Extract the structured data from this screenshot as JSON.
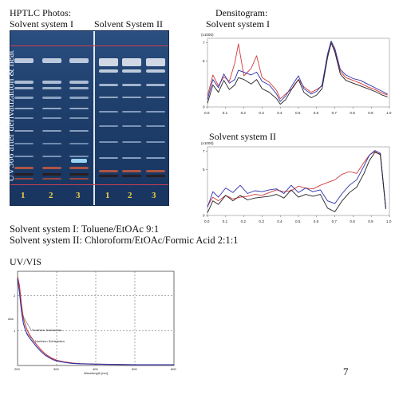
{
  "headings": {
    "hptlc": "HPTLC Photos:",
    "densitogram": "Densitogram:",
    "solvent1": "Solvent system I",
    "solvent2": "Solvent System II",
    "densito_solvent1": "Solvent system I",
    "densito_solvent2": "Solvent system II",
    "vertical_label": "UV366 after derivatization & heat"
  },
  "lanes": [
    "1",
    "2",
    "3",
    "1",
    "2",
    "3"
  ],
  "legend_text": {
    "line1": "Solvent system I: Toluene/EtOAc  9:1",
    "line2": "Solvent system II: Chloroform/EtOAc/Formic Acid  2:1:1"
  },
  "uv_title": "UV/VIS",
  "page_number": "7",
  "colors": {
    "plate_bg": "#1e3e6a",
    "densito_blue": "#2b2fa8",
    "densito_red": "#d23a3a",
    "densito_black": "#222222",
    "lane_label": "#f0d040"
  },
  "chart_data": [
    {
      "type": "line",
      "title": "Solvent system I",
      "ylabel": "(x1000)",
      "yticks": [
        "7",
        "5",
        "0"
      ],
      "xticks": [
        "0.0",
        "0.1",
        "0.2",
        "0.3",
        "0.4",
        "0.5",
        "0.6",
        "0.7",
        "0.8",
        "0.9",
        "1.0"
      ],
      "xlim": [
        0,
        1
      ],
      "ylim": [
        0,
        7.5
      ],
      "series": [
        {
          "color": "#d23a3a",
          "x": [
            0,
            0.03,
            0.06,
            0.09,
            0.12,
            0.15,
            0.17,
            0.2,
            0.24,
            0.27,
            0.3,
            0.34,
            0.38,
            0.4,
            0.43,
            0.47,
            0.5,
            0.53,
            0.57,
            0.6,
            0.63,
            0.66,
            0.68,
            0.7,
            0.73,
            0.76,
            0.8,
            0.84,
            0.88,
            0.92,
            0.96,
            0.99
          ],
          "y": [
            1.2,
            3.5,
            2.3,
            3.3,
            2.8,
            4.8,
            6.9,
            3.4,
            4.2,
            5.6,
            3.2,
            2.7,
            1.8,
            0.9,
            1.4,
            2.1,
            3.0,
            2.2,
            1.6,
            1.9,
            2.3,
            5.5,
            7.0,
            6.2,
            3.9,
            3.2,
            2.9,
            2.6,
            2.2,
            1.9,
            1.5,
            1.3
          ]
        },
        {
          "color": "#2b2fa8",
          "x": [
            0,
            0.03,
            0.06,
            0.09,
            0.12,
            0.15,
            0.17,
            0.2,
            0.24,
            0.27,
            0.3,
            0.34,
            0.38,
            0.4,
            0.43,
            0.47,
            0.5,
            0.53,
            0.57,
            0.6,
            0.63,
            0.66,
            0.68,
            0.7,
            0.73,
            0.76,
            0.8,
            0.84,
            0.88,
            0.92,
            0.96,
            0.99
          ],
          "y": [
            0.8,
            3.0,
            2.1,
            3.6,
            2.6,
            3.0,
            4.0,
            3.8,
            3.5,
            3.8,
            2.8,
            2.4,
            1.4,
            0.6,
            1.2,
            2.5,
            3.4,
            2.0,
            1.4,
            1.7,
            2.4,
            5.8,
            7.2,
            6.4,
            4.1,
            3.5,
            3.1,
            2.9,
            2.5,
            2.1,
            1.7,
            1.4
          ]
        },
        {
          "color": "#222222",
          "x": [
            0,
            0.03,
            0.06,
            0.09,
            0.12,
            0.15,
            0.17,
            0.2,
            0.24,
            0.27,
            0.3,
            0.34,
            0.38,
            0.4,
            0.43,
            0.47,
            0.5,
            0.53,
            0.57,
            0.6,
            0.63,
            0.66,
            0.68,
            0.7,
            0.73,
            0.76,
            0.8,
            0.84,
            0.88,
            0.92,
            0.96,
            0.99
          ],
          "y": [
            0.4,
            2.4,
            1.6,
            2.9,
            1.9,
            2.4,
            3.2,
            3.0,
            2.5,
            3.0,
            2.0,
            1.6,
            0.9,
            0.3,
            0.8,
            2.2,
            3.0,
            1.6,
            1.0,
            1.3,
            2.0,
            5.4,
            7.0,
            6.0,
            3.6,
            2.9,
            2.6,
            2.3,
            2.0,
            1.7,
            1.3,
            1.1
          ]
        }
      ]
    },
    {
      "type": "line",
      "title": "Solvent system II",
      "ylabel": "(x1000)",
      "yticks": [
        "7",
        "5",
        "0"
      ],
      "xticks": [
        "0.0",
        "0.1",
        "0.2",
        "0.3",
        "0.4",
        "0.5",
        "0.6",
        "0.7",
        "0.8",
        "0.9",
        "1.0"
      ],
      "xlim": [
        0,
        1
      ],
      "ylim": [
        0,
        7.5
      ],
      "series": [
        {
          "color": "#d23a3a",
          "x": [
            0,
            0.03,
            0.06,
            0.1,
            0.14,
            0.18,
            0.22,
            0.26,
            0.3,
            0.34,
            0.38,
            0.42,
            0.46,
            0.5,
            0.54,
            0.58,
            0.62,
            0.66,
            0.7,
            0.74,
            0.78,
            0.82,
            0.86,
            0.89,
            0.92,
            0.95,
            0.98
          ],
          "y": [
            1.0,
            2.0,
            1.6,
            2.2,
            1.8,
            2.0,
            2.1,
            2.3,
            2.2,
            2.5,
            2.8,
            2.6,
            2.7,
            3.2,
            3.0,
            2.9,
            3.3,
            3.6,
            3.9,
            4.5,
            4.8,
            4.6,
            5.8,
            6.6,
            7.0,
            6.6,
            0.8
          ]
        },
        {
          "color": "#2b2fa8",
          "x": [
            0,
            0.03,
            0.06,
            0.1,
            0.14,
            0.18,
            0.22,
            0.26,
            0.3,
            0.34,
            0.38,
            0.42,
            0.46,
            0.5,
            0.54,
            0.58,
            0.62,
            0.66,
            0.7,
            0.74,
            0.78,
            0.82,
            0.86,
            0.89,
            0.92,
            0.95,
            0.98
          ],
          "y": [
            0.9,
            2.6,
            2.0,
            3.0,
            2.5,
            3.3,
            2.4,
            2.7,
            2.6,
            2.8,
            2.9,
            2.4,
            3.3,
            2.5,
            3.0,
            2.6,
            2.8,
            1.6,
            1.3,
            2.4,
            3.3,
            3.9,
            5.4,
            6.6,
            7.1,
            6.8,
            0.9
          ]
        },
        {
          "color": "#222222",
          "x": [
            0,
            0.03,
            0.06,
            0.1,
            0.14,
            0.18,
            0.22,
            0.26,
            0.3,
            0.34,
            0.38,
            0.42,
            0.46,
            0.5,
            0.54,
            0.58,
            0.62,
            0.66,
            0.7,
            0.74,
            0.78,
            0.82,
            0.86,
            0.89,
            0.92,
            0.95,
            0.98
          ],
          "y": [
            0.3,
            1.6,
            1.2,
            2.2,
            1.6,
            2.2,
            1.7,
            1.9,
            2.0,
            2.1,
            2.3,
            1.9,
            2.8,
            2.0,
            2.3,
            2.1,
            2.3,
            0.8,
            0.4,
            1.6,
            2.5,
            3.1,
            4.6,
            6.0,
            6.9,
            6.7,
            0.7
          ]
        }
      ]
    },
    {
      "type": "line",
      "title": "UV/VIS",
      "xlabel": "Wavelength [nm]",
      "ylabel": "Abs",
      "xticks": [
        "200",
        "300",
        "400",
        "500",
        "600"
      ],
      "yticks": [
        "1",
        "2"
      ],
      "xlim": [
        200,
        600
      ],
      "ylim": [
        0,
        2.7
      ],
      "series": [
        {
          "name": "Southern Schisandra",
          "color": "#d23a3a",
          "x": [
            200,
            205,
            210,
            215,
            220,
            225,
            230,
            240,
            250,
            260,
            270,
            280,
            290,
            300,
            320,
            340,
            360,
            400,
            450,
            500,
            550,
            600
          ],
          "y": [
            2.55,
            2.3,
            1.75,
            1.35,
            1.15,
            1.0,
            0.9,
            0.72,
            0.58,
            0.45,
            0.34,
            0.26,
            0.2,
            0.15,
            0.1,
            0.07,
            0.05,
            0.04,
            0.03,
            0.02,
            0.02,
            0.02
          ]
        },
        {
          "name": "Northern Schisandra",
          "color": "#2b2fa8",
          "x": [
            200,
            205,
            210,
            215,
            220,
            225,
            230,
            240,
            250,
            260,
            270,
            280,
            290,
            300,
            320,
            340,
            360,
            400,
            450,
            500,
            550,
            600
          ],
          "y": [
            2.5,
            2.1,
            1.55,
            1.2,
            1.02,
            0.88,
            0.8,
            0.66,
            0.52,
            0.4,
            0.3,
            0.23,
            0.17,
            0.13,
            0.09,
            0.06,
            0.05,
            0.04,
            0.03,
            0.02,
            0.02,
            0.02
          ]
        }
      ]
    }
  ]
}
